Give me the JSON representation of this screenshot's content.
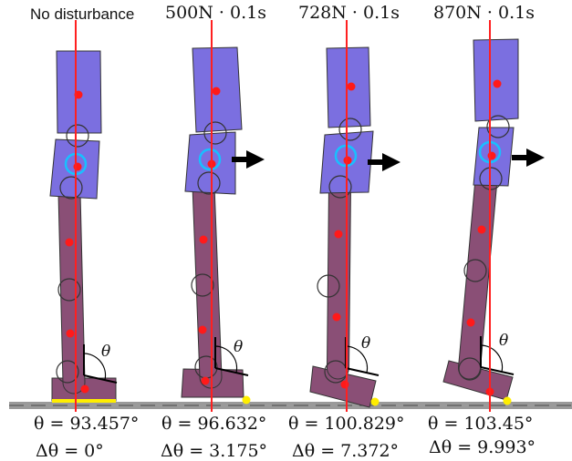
{
  "panels": [
    {
      "header": "No disturbance",
      "theta": "θ = 93.457°",
      "delta": "Δθ = 0°",
      "disturbed": false
    },
    {
      "header": "500N · 0.1s",
      "theta": "θ = 96.632°",
      "delta": "Δθ = 3.175°",
      "disturbed": true
    },
    {
      "header": "728N · 0.1s",
      "theta": "θ = 100.829°",
      "delta": "Δθ = 7.372°",
      "disturbed": true
    },
    {
      "header": "870N · 0.1s",
      "theta": "θ = 103.45°",
      "delta": "Δθ = 9.993°",
      "disturbed": true
    }
  ],
  "angle_symbol": "θ",
  "colors": {
    "upper_body": "#7b6fe0",
    "leg": "#8a4f76",
    "foot": "#8a4f76",
    "com_point": "#ff1a1a",
    "reference_line": "#ff2020",
    "cop_ring": "#18c0ff",
    "contact_point": "#ffee00",
    "ground": "#9a9a9a",
    "arrow": "#000000"
  },
  "icons": {
    "push": "push-arrow-icon",
    "joint": "joint-circle-icon"
  }
}
